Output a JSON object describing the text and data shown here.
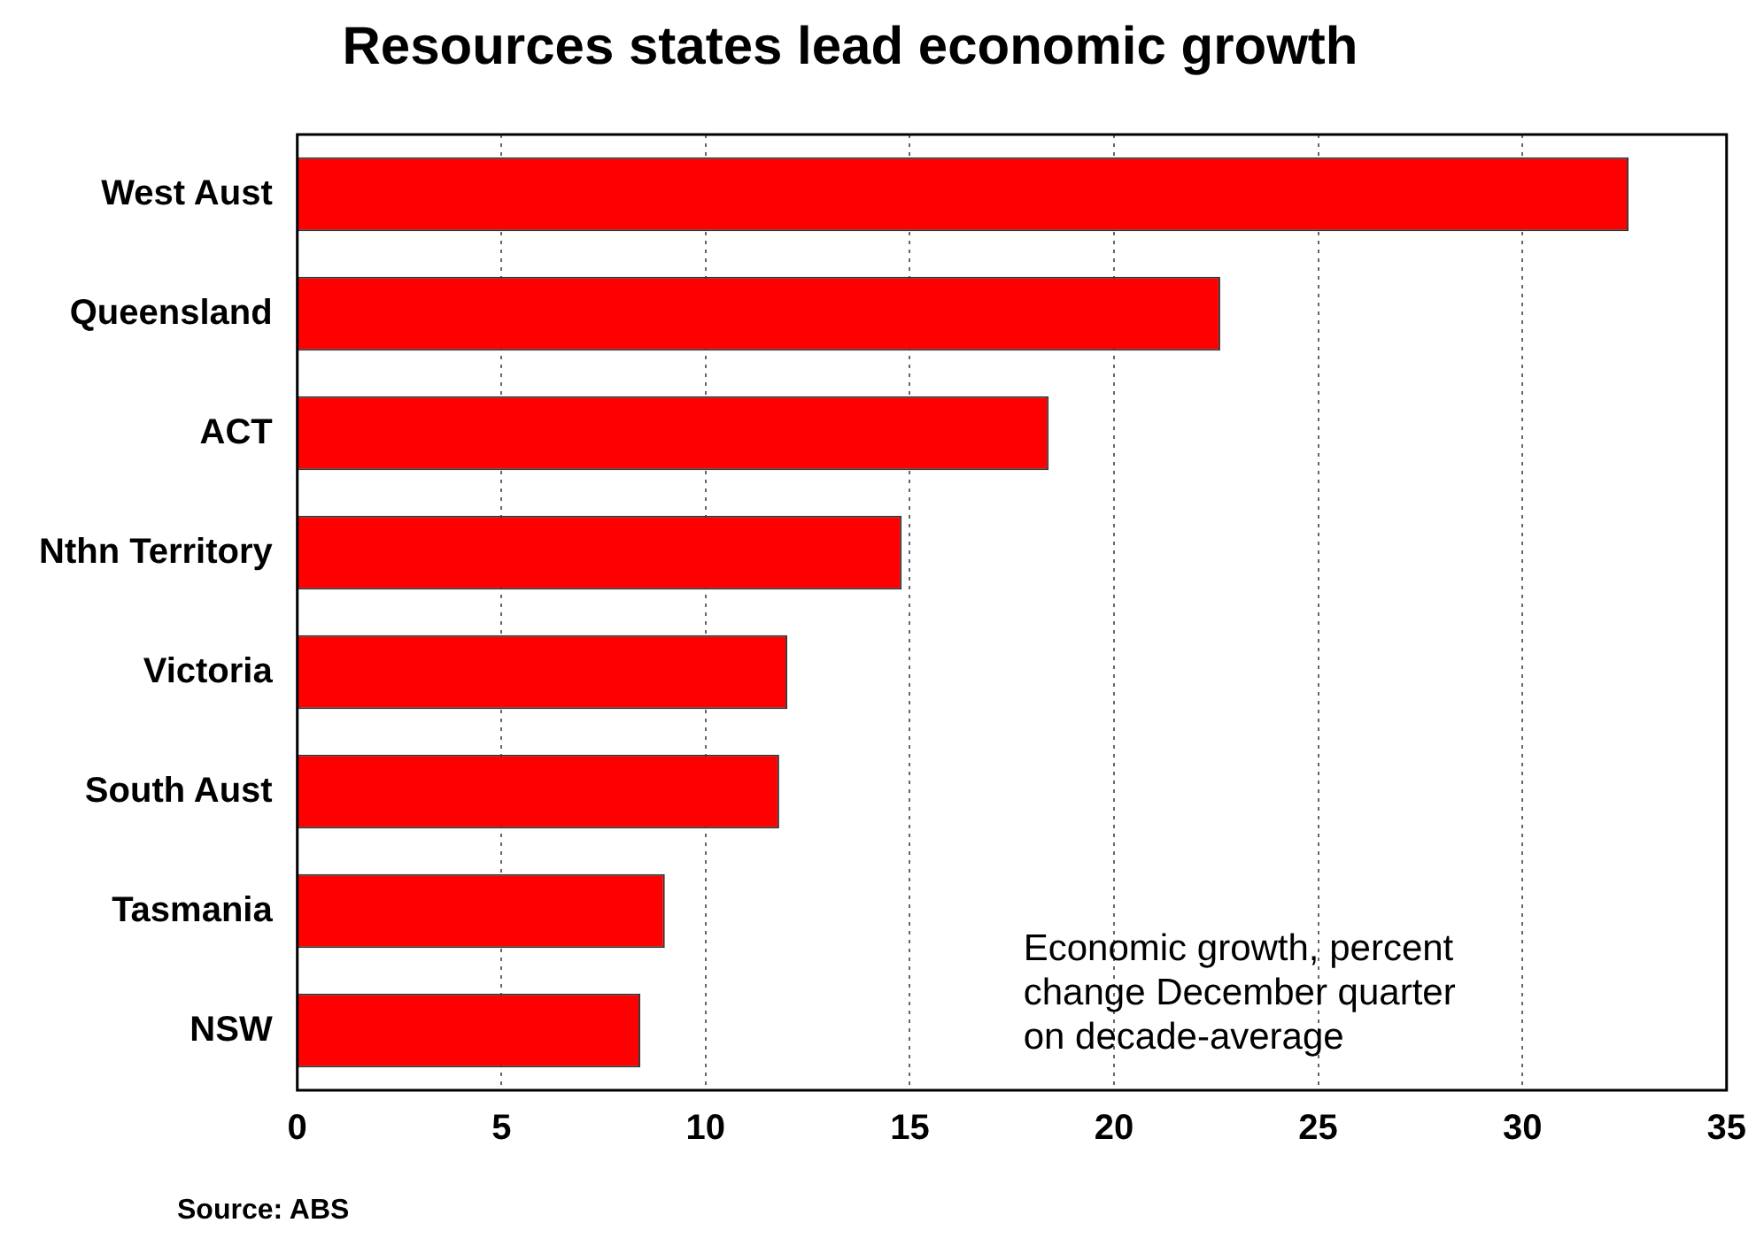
{
  "chart_data": {
    "type": "bar",
    "orientation": "horizontal",
    "title": "Resources states lead economic growth",
    "categories": [
      "West Aust",
      "Queensland",
      "ACT",
      "Nthn Territory",
      "Victoria",
      "South Aust",
      "Tasmania",
      "NSW"
    ],
    "values": [
      32.6,
      22.6,
      18.4,
      14.8,
      12.0,
      11.8,
      9.0,
      8.4
    ],
    "color": "#ff0000",
    "xlim": [
      0,
      35
    ],
    "xticks": [
      0,
      5,
      10,
      15,
      20,
      25,
      30,
      35
    ],
    "grid": "x",
    "legend": false,
    "annotations": [
      "Economic growth, percent\nchange December quarter\non decade-average",
      "Source: ABS"
    ]
  }
}
